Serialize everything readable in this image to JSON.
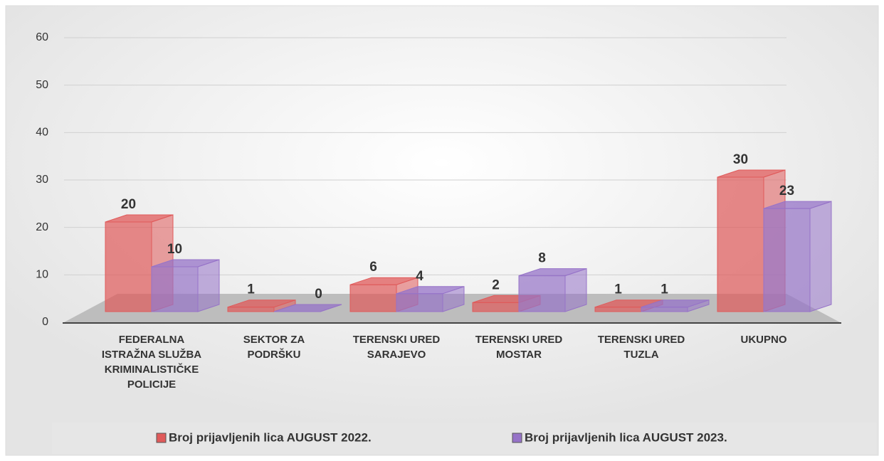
{
  "chart_data": {
    "type": "bar3d",
    "categories": [
      "FEDERALNA\nISTRAŽNA SLUŽBA\nKRIMINALISTIČKE\nPOLICIJE",
      "SEKTOR ZA\nPODRŠKU",
      "TERENSKI URED\nSARAJEVO",
      "TERENSKI URED\nMOSTAR",
      "TERENSKI URED\nTUZLA",
      "UKUPNO"
    ],
    "series": [
      {
        "name": "Broj prijavljenih lica AUGUST 2022.",
        "color": "#e05a5a",
        "values": [
          20,
          1,
          6,
          2,
          1,
          30
        ]
      },
      {
        "name": "Broj prijavljenih lica AUGUST  2023.",
        "color": "#9673c8",
        "values": [
          10,
          0,
          4,
          8,
          1,
          23
        ]
      }
    ],
    "ylim": [
      0,
      60
    ],
    "yticks": [
      0,
      10,
      20,
      30,
      40,
      50,
      60
    ],
    "grid": true,
    "legend": "bottom"
  }
}
